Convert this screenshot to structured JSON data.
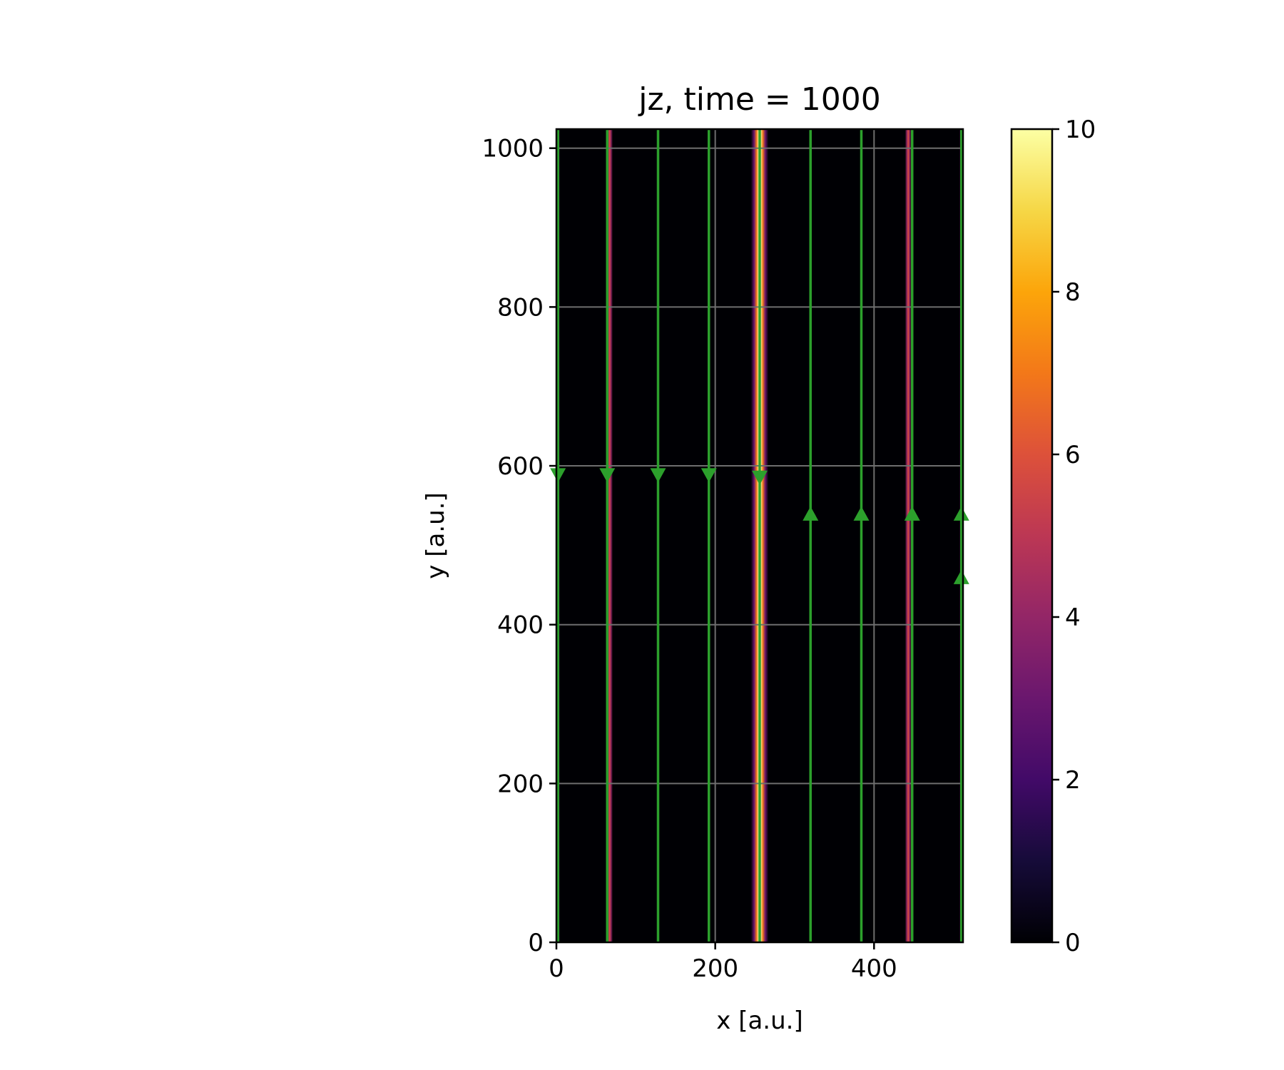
{
  "chart_data": {
    "type": "heatmap",
    "title": "jz, time = 1000",
    "xlabel": "x [a.u.]",
    "ylabel": "y [a.u.]",
    "xlim": [
      0,
      512
    ],
    "ylim": [
      0,
      1024
    ],
    "x_ticks": [
      0,
      200,
      400
    ],
    "y_ticks": [
      0,
      200,
      400,
      600,
      800,
      1000
    ],
    "grid": true,
    "colormap": "inferno",
    "colorbar": {
      "min": 0,
      "max": 10,
      "ticks": [
        0,
        2,
        4,
        6,
        8,
        10
      ]
    },
    "current_sheets": [
      {
        "x": 2,
        "width": 5,
        "value": 3.5
      },
      {
        "x": 67,
        "width": 8,
        "value": 5.5
      },
      {
        "x": 256,
        "width": 22,
        "value": 10
      },
      {
        "x": 443,
        "width": 8,
        "value": 5.5
      },
      {
        "x": 510,
        "width": 5,
        "value": 3.5
      }
    ],
    "streamlines": {
      "color": "#2ca02c",
      "lines": [
        {
          "x": 2,
          "direction": "down",
          "arrow_y": 588
        },
        {
          "x": 64,
          "direction": "down",
          "arrow_y": 588
        },
        {
          "x": 128,
          "direction": "down",
          "arrow_y": 588
        },
        {
          "x": 192,
          "direction": "down",
          "arrow_y": 588
        },
        {
          "x": 256,
          "direction": "down",
          "arrow_y": 585
        },
        {
          "x": 320,
          "direction": "up",
          "arrow_y": 540
        },
        {
          "x": 384,
          "direction": "up",
          "arrow_y": 540
        },
        {
          "x": 448,
          "direction": "up",
          "arrow_y": 540
        },
        {
          "x": 510,
          "direction": "up",
          "arrow_y": 540
        },
        {
          "x": 510,
          "direction": "up",
          "arrow_y": 460
        }
      ]
    }
  }
}
